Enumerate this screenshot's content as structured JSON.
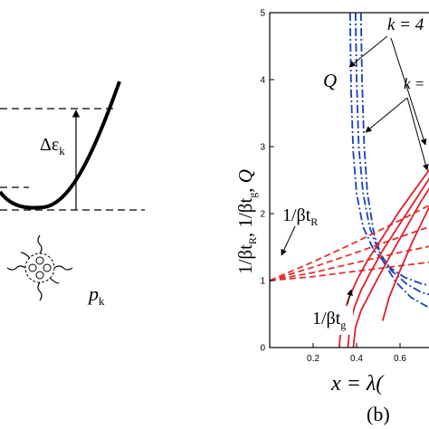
{
  "left_panel": {
    "delta_label": "Δε",
    "delta_sub": "k",
    "p_label": "p",
    "p_sub": "k"
  },
  "right_panel": {
    "panel_label": "(b)",
    "ylabel_1": "1/βt",
    "ylabel_1_sub": "R",
    "ylabel_sep1": ", ",
    "ylabel_2": "1/βt",
    "ylabel_2_sub": "g",
    "ylabel_sep2": ", ",
    "ylabel_3": "Q",
    "xlabel": "x = λ(",
    "annotations": {
      "k4": "k = 4",
      "k_other": "k =",
      "Q": "Q",
      "tR": "1/βt",
      "tR_sub": "R",
      "tg": "1/βt",
      "tg_sub": "g"
    }
  },
  "colors": {
    "Q": "#1a3fb5",
    "tR": "#e53030",
    "tg": "#e01f2a",
    "axis": "#000000"
  },
  "chart_data": {
    "type": "line",
    "title": "",
    "xlabel": "x = λ(",
    "ylabel": "1/βt_R, 1/βt_g, Q",
    "xlim": [
      0.0,
      0.75
    ],
    "ylim": [
      0,
      5
    ],
    "x_ticks": [
      0.2,
      0.4,
      0.6
    ],
    "x_tick_labels": [
      "0.2",
      "0.4",
      "0.6"
    ],
    "y_ticks": [
      0,
      1,
      2,
      3,
      4,
      5
    ],
    "y_tick_labels": [
      "0",
      "1",
      "2",
      "3",
      "4",
      "5"
    ],
    "grid": false,
    "series": [
      {
        "kind": "Q",
        "style": "dash-dot",
        "color": "#1a3fb5",
        "x": [
          0.37,
          0.375,
          0.385,
          0.4,
          0.43,
          0.48,
          0.55,
          0.62,
          0.7,
          0.75
        ],
        "y": [
          5.0,
          3.8,
          2.9,
          2.3,
          1.8,
          1.45,
          1.2,
          1.05,
          0.95,
          0.92
        ]
      },
      {
        "kind": "Q",
        "style": "dash-dot",
        "color": "#1a3fb5",
        "x": [
          0.395,
          0.4,
          0.41,
          0.43,
          0.46,
          0.5,
          0.56,
          0.63,
          0.7,
          0.75
        ],
        "y": [
          5.0,
          4.0,
          3.0,
          2.3,
          1.8,
          1.45,
          1.15,
          0.95,
          0.82,
          0.78
        ]
      },
      {
        "kind": "Q",
        "style": "dash-dot",
        "color": "#1a3fb5",
        "x": [
          0.42,
          0.425,
          0.435,
          0.45,
          0.48,
          0.52,
          0.58,
          0.65,
          0.72,
          0.75
        ],
        "y": [
          5.0,
          4.0,
          3.0,
          2.3,
          1.7,
          1.3,
          0.98,
          0.75,
          0.62,
          0.58
        ]
      },
      {
        "kind": "tR",
        "style": "dash",
        "color": "#e53030",
        "x": [
          0.0,
          0.2,
          0.4,
          0.6,
          0.75
        ],
        "y": [
          1.0,
          1.28,
          1.58,
          1.9,
          2.15
        ]
      },
      {
        "kind": "tR",
        "style": "dash",
        "color": "#e53030",
        "x": [
          0.0,
          0.2,
          0.4,
          0.6,
          0.75
        ],
        "y": [
          1.0,
          1.2,
          1.42,
          1.65,
          1.82
        ]
      },
      {
        "kind": "tR",
        "style": "dash",
        "color": "#e53030",
        "x": [
          0.0,
          0.2,
          0.4,
          0.6,
          0.75
        ],
        "y": [
          1.0,
          1.12,
          1.27,
          1.42,
          1.52
        ]
      },
      {
        "kind": "tR",
        "style": "dash",
        "color": "#e53030",
        "x": [
          0.0,
          0.2,
          0.4,
          0.6,
          0.75
        ],
        "y": [
          1.0,
          1.06,
          1.14,
          1.22,
          1.28
        ]
      },
      {
        "kind": "tg",
        "style": "solid",
        "color": "#e01f2a",
        "x": [
          0.32,
          0.33,
          0.36,
          0.4,
          0.45,
          0.52,
          0.6,
          0.7,
          0.75
        ],
        "y": [
          0.0,
          0.35,
          0.7,
          1.0,
          1.3,
          1.65,
          2.05,
          2.5,
          2.72
        ]
      },
      {
        "kind": "tg",
        "style": "solid",
        "color": "#e01f2a",
        "x": [
          0.36,
          0.37,
          0.39,
          0.42,
          0.46,
          0.52,
          0.6,
          0.7,
          0.75
        ],
        "y": [
          0.0,
          0.35,
          0.6,
          0.85,
          1.1,
          1.45,
          1.85,
          2.35,
          2.6
        ]
      },
      {
        "kind": "tg",
        "style": "solid",
        "color": "#e01f2a",
        "x": [
          0.385,
          0.395,
          0.42,
          0.46,
          0.5,
          0.56,
          0.63,
          0.7,
          0.75
        ],
        "y": [
          0.0,
          0.3,
          0.55,
          0.8,
          1.05,
          1.4,
          1.8,
          2.2,
          2.45
        ]
      },
      {
        "kind": "tg",
        "style": "solid",
        "color": "#e01f2a",
        "x": [
          0.52,
          0.55,
          0.6,
          0.66,
          0.72,
          0.75
        ],
        "y": [
          0.4,
          0.75,
          1.15,
          1.6,
          2.0,
          2.2
        ]
      }
    ]
  }
}
